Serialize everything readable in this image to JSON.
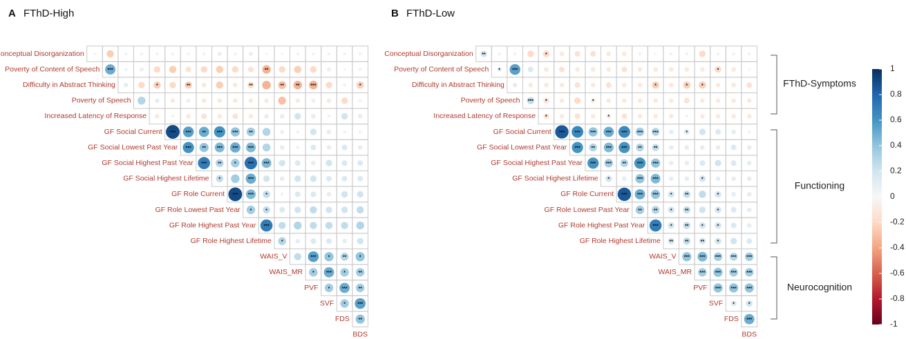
{
  "chart_data": {
    "type": "corrplot",
    "variables": [
      "Conceptual Disorganization",
      "Poverty of Content of Speech",
      "Difficulty in Abstract Thinking",
      "Poverty of Speech",
      "Increased Latency of Response",
      "GF Social Current",
      "GF Social Lowest Past Year",
      "GF Social Highest Past Year",
      "GF Social Highest Lifetime",
      "GF Role Current",
      "GF Role Lowest Past Year",
      "GF Role Highest Past Year",
      "GF Role Highest Lifetime",
      "WAIS_V",
      "WAIS_MR",
      "PVF",
      "SVF",
      "FDS",
      "BDS"
    ],
    "panels": [
      {
        "label": "A",
        "title": "FThD-High",
        "values": [
          [
            0.03,
            -0.25,
            0.05,
            0.05,
            0.05,
            -0.05,
            0.05,
            -0.05,
            0.08,
            0.05,
            0.08,
            0.03,
            0.03,
            0.05,
            0.05,
            0.05,
            0.05,
            0.05
          ],
          [
            0.5,
            0.05,
            0.08,
            -0.2,
            -0.25,
            -0.15,
            -0.2,
            -0.25,
            -0.2,
            -0.15,
            -0.35,
            -0.2,
            -0.25,
            -0.2,
            -0.08,
            0.03,
            0.05
          ],
          [
            0.1,
            -0.2,
            -0.25,
            -0.2,
            -0.25,
            -0.1,
            -0.25,
            -0.1,
            -0.2,
            -0.35,
            -0.3,
            -0.35,
            -0.35,
            -0.2,
            -0.05,
            -0.25
          ],
          [
            0.3,
            0.1,
            -0.1,
            -0.08,
            -0.1,
            -0.1,
            -0.1,
            -0.1,
            -0.1,
            -0.3,
            -0.1,
            -0.08,
            -0.1,
            -0.2,
            0.05
          ],
          [
            -0.1,
            -0.05,
            -0.1,
            -0.15,
            -0.1,
            -0.15,
            -0.1,
            0.1,
            0.1,
            0.2,
            0.1,
            0.05,
            0.2,
            0.1
          ],
          [
            0.9,
            0.55,
            0.5,
            0.6,
            0.4,
            0.35,
            0.3,
            0.08,
            0.05,
            0.2,
            0.1,
            0.05,
            0.05
          ],
          [
            0.6,
            0.4,
            0.45,
            0.5,
            0.45,
            0.3,
            0.1,
            0.05,
            0.15,
            0.1,
            0.15,
            0.1
          ],
          [
            0.7,
            0.3,
            0.35,
            0.75,
            0.45,
            0.2,
            0.15,
            0.1,
            0.2,
            0.15,
            0.15
          ],
          [
            0.25,
            0.35,
            0.5,
            0.2,
            0.1,
            0.2,
            0.2,
            0.15,
            0.15,
            0.15
          ],
          [
            0.9,
            0.45,
            0.25,
            0.05,
            0.15,
            0.15,
            0.1,
            0.2,
            0.2
          ],
          [
            0.35,
            0.25,
            0.15,
            0.2,
            0.25,
            0.2,
            0.2,
            0.25
          ],
          [
            0.7,
            0.25,
            0.3,
            0.25,
            0.25,
            0.25,
            0.3
          ],
          [
            0.3,
            0.1,
            0.15,
            0.15,
            0.1,
            0.2
          ],
          [
            0.25,
            0.55,
            0.4,
            0.3,
            0.4
          ],
          [
            0.35,
            0.5,
            0.35,
            0.35
          ],
          [
            0.35,
            0.5,
            0.35
          ],
          [
            0.35,
            0.55
          ],
          [
            0.4
          ]
        ],
        "stars": [
          [
            null,
            null,
            null,
            null,
            null,
            null,
            null,
            null,
            null,
            null,
            null,
            null,
            null,
            null,
            null,
            null,
            null,
            null
          ],
          [
            "***",
            null,
            null,
            null,
            null,
            null,
            null,
            null,
            null,
            null,
            "**",
            null,
            null,
            null,
            null,
            null,
            null
          ],
          [
            null,
            null,
            "*",
            null,
            "**",
            null,
            null,
            null,
            "**",
            null,
            "**",
            "**",
            "***",
            null,
            null,
            "*"
          ],
          [
            null,
            null,
            null,
            null,
            null,
            null,
            null,
            null,
            null,
            null,
            null,
            null,
            null,
            null,
            null
          ],
          [
            null,
            null,
            null,
            null,
            null,
            null,
            null,
            null,
            null,
            null,
            null,
            null,
            null,
            null
          ],
          [
            "***",
            "***",
            "**",
            "***",
            "***",
            "**",
            null,
            null,
            null,
            null,
            null,
            null,
            null
          ],
          [
            "***",
            "**",
            "***",
            "***",
            "***",
            null,
            null,
            null,
            null,
            null,
            null,
            null
          ],
          [
            "***",
            "**",
            "*",
            "***",
            "***",
            null,
            null,
            null,
            null,
            null,
            null
          ],
          [
            "*",
            null,
            "***",
            null,
            null,
            null,
            null,
            null,
            null,
            null
          ],
          [
            "***",
            "***",
            "*",
            null,
            null,
            null,
            null,
            null,
            null
          ],
          [
            "*",
            "*",
            null,
            null,
            null,
            null,
            null,
            null
          ],
          [
            "***",
            null,
            null,
            null,
            null,
            null,
            null
          ],
          [
            "*",
            null,
            null,
            null,
            null,
            null
          ],
          [
            null,
            "***",
            "*",
            "**",
            "*"
          ],
          [
            "*",
            "***",
            "*",
            "**"
          ],
          [
            "*",
            "***",
            "**"
          ],
          [
            "*",
            "***"
          ],
          [
            "**"
          ]
        ]
      },
      {
        "label": "B",
        "title": "FThD-Low",
        "values": [
          [
            0.2,
            0.05,
            0.05,
            -0.2,
            -0.2,
            -0.1,
            -0.15,
            -0.15,
            -0.1,
            -0.1,
            -0.05,
            0.03,
            0.05,
            0.05,
            -0.2,
            0.05,
            0.05,
            0.05
          ],
          [
            0.1,
            0.55,
            0.15,
            -0.1,
            -0.15,
            -0.1,
            -0.1,
            -0.1,
            -0.15,
            -0.1,
            -0.1,
            -0.1,
            -0.1,
            -0.1,
            -0.2,
            -0.1,
            0.03
          ],
          [
            0.1,
            -0.1,
            -0.1,
            -0.1,
            -0.15,
            -0.1,
            -0.15,
            -0.1,
            -0.1,
            -0.25,
            -0.1,
            -0.25,
            -0.25,
            -0.1,
            -0.1,
            -0.15
          ],
          [
            0.25,
            -0.15,
            -0.1,
            -0.2,
            -0.1,
            -0.1,
            -0.1,
            -0.1,
            -0.1,
            -0.1,
            -0.15,
            -0.1,
            -0.1,
            -0.1,
            -0.1
          ],
          [
            -0.15,
            -0.1,
            -0.15,
            -0.1,
            -0.1,
            -0.15,
            -0.1,
            -0.1,
            -0.1,
            -0.05,
            -0.1,
            -0.1,
            -0.1,
            -0.1
          ],
          [
            0.85,
            0.65,
            0.4,
            0.5,
            0.65,
            0.35,
            0.3,
            0.1,
            0.15,
            0.2,
            0.15,
            0.1,
            0.05
          ],
          [
            0.6,
            0.3,
            0.45,
            0.6,
            0.3,
            0.25,
            0.1,
            0.1,
            0.1,
            0.1,
            0.15,
            0.1
          ],
          [
            0.6,
            0.35,
            0.3,
            0.6,
            0.4,
            0.1,
            0.1,
            0.15,
            0.2,
            0.15,
            0.1
          ],
          [
            0.2,
            0.1,
            0.4,
            0.45,
            0.1,
            0.1,
            0.2,
            0.1,
            0.1,
            0.1
          ],
          [
            0.85,
            0.5,
            0.4,
            0.2,
            0.25,
            0.25,
            0.2,
            0.1,
            0.1
          ],
          [
            0.35,
            0.3,
            0.2,
            0.25,
            0.2,
            0.2,
            0.15,
            0.1
          ],
          [
            0.7,
            0.2,
            0.25,
            0.2,
            0.2,
            0.15,
            0.1
          ],
          [
            0.2,
            0.25,
            0.2,
            0.2,
            0.2,
            0.15
          ],
          [
            0.4,
            0.45,
            0.35,
            0.3,
            0.35
          ],
          [
            0.35,
            0.4,
            0.35,
            0.35
          ],
          [
            0.4,
            0.4,
            0.4
          ],
          [
            0.15,
            0.2
          ],
          [
            0.5
          ]
        ],
        "stars": [
          [
            "**",
            null,
            null,
            null,
            "*",
            null,
            null,
            null,
            null,
            null,
            null,
            null,
            null,
            null,
            null,
            null,
            null,
            null
          ],
          [
            "*",
            "***",
            null,
            null,
            null,
            null,
            null,
            null,
            null,
            null,
            null,
            null,
            null,
            null,
            "*",
            null,
            null
          ],
          [
            null,
            null,
            null,
            null,
            null,
            null,
            null,
            null,
            null,
            "*",
            null,
            "*",
            "*",
            null,
            null,
            null
          ],
          [
            "***",
            "*",
            null,
            null,
            "*",
            null,
            null,
            null,
            null,
            null,
            null,
            null,
            null,
            null,
            null
          ],
          [
            "*",
            null,
            null,
            null,
            "*",
            null,
            null,
            null,
            null,
            null,
            null,
            null,
            null,
            null
          ],
          [
            "***",
            "***",
            "***",
            "***",
            "***",
            "***",
            "***",
            null,
            "*",
            null,
            null,
            null,
            null
          ],
          [
            "***",
            "**",
            "***",
            "***",
            "**",
            "**",
            null,
            null,
            null,
            null,
            null,
            null
          ],
          [
            "***",
            "***",
            "**",
            "***",
            "***",
            null,
            null,
            null,
            null,
            null,
            null
          ],
          [
            "*",
            null,
            "***",
            "***",
            null,
            null,
            "*",
            null,
            null,
            null
          ],
          [
            "***",
            "***",
            "***",
            "*",
            "**",
            null,
            "*",
            null,
            null
          ],
          [
            "**",
            "**",
            "*",
            "**",
            null,
            "*",
            null,
            null
          ],
          [
            "***",
            "*",
            "**",
            "*",
            "*",
            null,
            null
          ],
          [
            "**",
            "**",
            "**",
            "*",
            null,
            null
          ],
          [
            "***",
            "***",
            "***",
            "***",
            "***"
          ],
          [
            "***",
            "***",
            "***",
            "***"
          ],
          [
            "***",
            "***",
            "***"
          ],
          [
            "*",
            "*"
          ],
          [
            "***"
          ]
        ]
      }
    ],
    "clim": [
      -1,
      1
    ],
    "cticks": [
      1,
      0.8,
      0.6,
      0.4,
      0.2,
      0,
      -0.2,
      -0.4,
      -0.6,
      -0.8,
      -1
    ],
    "colors": [
      "#67001f",
      "#b2182b",
      "#d6604d",
      "#f4a582",
      "#fddbc7",
      "#f7f7f7",
      "#d1e5f0",
      "#92c5de",
      "#4393c3",
      "#2166ac",
      "#053061"
    ],
    "groups": [
      "FThD-Symptoms",
      "Functioning",
      "Neurocognition"
    ]
  }
}
